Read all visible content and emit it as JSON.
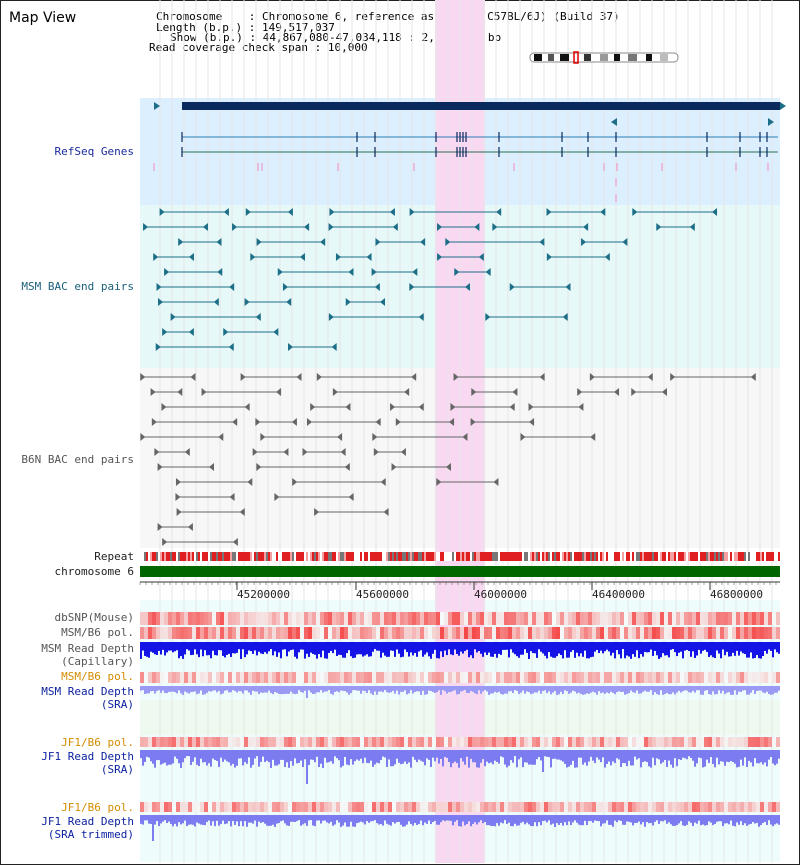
{
  "window": {
    "title": "Map View"
  },
  "header": {
    "chromosome_label": "Chromosome",
    "chromosome_value": "Chromosome 6, reference assembly (C57BL/6J) (Build 37)",
    "length_label": "Length (b.p.)",
    "length_value": "149,517,037",
    "show_label": "Show (b.p.)",
    "show_value": "44,867,080-47,034,118 : 2,167,039 bp",
    "coverage_label": "Read coverage check span",
    "coverage_value": "10,000"
  },
  "tracks": {
    "refseq": "RefSeq Genes",
    "msm_bac": "MSM BAC end pairs",
    "b6n_bac": "B6N BAC end pairs",
    "repeat": "Repeat",
    "chromosome": "chromosome 6",
    "dbsnp": "dbSNP(Mouse)",
    "msm_b6_pol_1": "MSM/B6 pol.",
    "msm_read_depth_cap_1": "MSM Read Depth",
    "msm_read_depth_cap_2": "(Capillary)",
    "msm_b6_pol_2": "MSM/B6 pol.",
    "msm_read_depth_sra_1": "MSM Read Depth",
    "msm_read_depth_sra_2": "(SRA)",
    "jf1_b6_pol_1": "JF1/B6 pol.",
    "jf1_read_depth_sra_1": "JF1 Read Depth",
    "jf1_read_depth_sra_2": "(SRA)",
    "jf1_b6_pol_2": "JF1/B6 pol.",
    "jf1_read_depth_trim_1": "JF1 Read Depth",
    "jf1_read_depth_trim_2": "(SRA trimmed)"
  },
  "axis": {
    "ticks": [
      "45200000",
      "45600000",
      "46000000",
      "46400000",
      "46800000"
    ]
  },
  "colors": {
    "refseq_bg": "#dcefff",
    "bac_bg": "#e6f8f8",
    "highlight": "#f9d8f2",
    "msm_feature": "#1d6e87",
    "b6n_feature": "#666666",
    "chromosome_bar": "#006600",
    "depth_blue": "#1414e6",
    "depth_light": "#7c7cf0",
    "snp_red": "#f05050"
  }
}
